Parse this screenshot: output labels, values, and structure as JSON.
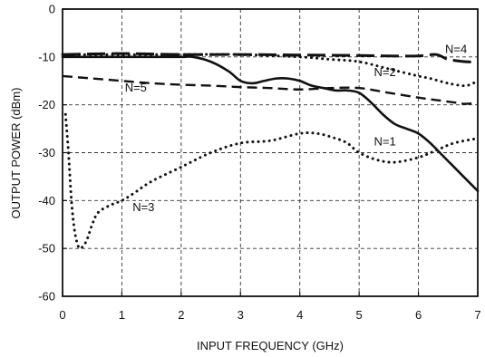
{
  "chart_data": {
    "type": "line",
    "title": "",
    "xlabel": "INPUT FREQUENCY (GHz)",
    "ylabel": "OUTPUT POWER (dBm)",
    "xlim": [
      0,
      7
    ],
    "ylim": [
      -60,
      0
    ],
    "xticks": [
      0,
      1,
      2,
      3,
      4,
      5,
      6,
      7
    ],
    "yticks": [
      0,
      -10,
      -20,
      -30,
      -40,
      -50,
      -60
    ],
    "grid": true,
    "legend": "none",
    "series": [
      {
        "name": "N=1",
        "style": "solid",
        "x": [
          0.0,
          0.5,
          1.0,
          1.5,
          2.0,
          2.2,
          2.5,
          2.8,
          3.0,
          3.2,
          3.4,
          3.6,
          3.8,
          4.0,
          4.2,
          4.4,
          4.6,
          4.8,
          5.0,
          5.2,
          5.4,
          5.6,
          5.8,
          6.0,
          6.2,
          6.4,
          6.6,
          6.8,
          7.0
        ],
        "y": [
          -10.0,
          -10.0,
          -10.0,
          -10.0,
          -10.0,
          -10.0,
          -11.0,
          -13.0,
          -15.0,
          -15.5,
          -15.0,
          -14.5,
          -14.5,
          -15.0,
          -16.0,
          -16.5,
          -17.0,
          -17.0,
          -17.5,
          -19.5,
          -22.0,
          -24.0,
          -25.0,
          -26.0,
          -28.0,
          -30.5,
          -33.0,
          -35.5,
          -38.0
        ]
      },
      {
        "name": "N=2",
        "style": "dotted",
        "x": [
          0.0,
          1.0,
          2.0,
          3.0,
          4.0,
          4.5,
          5.0,
          5.5,
          6.0,
          6.2,
          6.5,
          6.8,
          7.0
        ],
        "y": [
          -9.5,
          -9.5,
          -9.5,
          -9.5,
          -10.0,
          -10.5,
          -11.0,
          -12.5,
          -14.0,
          -14.5,
          -15.5,
          -16.0,
          -15.0
        ]
      },
      {
        "name": "N=3",
        "style": "dotted",
        "x": [
          0.05,
          0.1,
          0.15,
          0.2,
          0.25,
          0.3,
          0.4,
          0.5,
          0.6,
          0.8,
          1.0,
          1.2,
          1.5,
          2.0,
          2.5,
          3.0,
          3.5,
          4.0,
          4.3,
          4.6,
          4.8,
          5.0,
          5.3,
          5.6,
          6.0,
          6.3,
          6.6,
          7.0
        ],
        "y": [
          -22.0,
          -30.0,
          -40.0,
          -46.0,
          -49.0,
          -50.0,
          -48.5,
          -45.0,
          -42.5,
          -41.0,
          -40.0,
          -38.5,
          -36.0,
          -33.0,
          -30.0,
          -28.0,
          -27.5,
          -26.0,
          -26.0,
          -27.0,
          -28.0,
          -30.0,
          -31.5,
          -32.0,
          -31.0,
          -29.5,
          -28.0,
          -27.0
        ]
      },
      {
        "name": "N=4",
        "style": "long-dash",
        "x": [
          0.0,
          1.0,
          2.0,
          3.0,
          4.0,
          5.0,
          5.5,
          6.0,
          6.3,
          6.5,
          6.8,
          7.0
        ],
        "y": [
          -9.5,
          -9.3,
          -9.5,
          -9.5,
          -9.6,
          -9.7,
          -9.8,
          -9.8,
          -9.5,
          -10.5,
          -11.0,
          -11.0
        ]
      },
      {
        "name": "N=5",
        "style": "dashed",
        "x": [
          0.0,
          0.5,
          1.0,
          1.5,
          2.0,
          2.5,
          3.0,
          3.5,
          4.0,
          4.5,
          5.0,
          5.5,
          6.0,
          6.3,
          6.6,
          6.8,
          7.0
        ],
        "y": [
          -14.0,
          -14.5,
          -15.0,
          -15.5,
          -15.8,
          -16.0,
          -16.3,
          -16.5,
          -16.8,
          -16.5,
          -16.5,
          -17.5,
          -18.5,
          -19.0,
          -19.5,
          -19.8,
          -19.5
        ]
      }
    ],
    "annotations": [
      {
        "text": "N=4",
        "x": 6.45,
        "y": -9.2
      },
      {
        "text": "N=2",
        "x": 5.25,
        "y": -14.0
      },
      {
        "text": "N=5",
        "x": 1.05,
        "y": -17.2
      },
      {
        "text": "N=1",
        "x": 5.25,
        "y": -28.5
      },
      {
        "text": "N=3",
        "x": 1.18,
        "y": -42.2
      }
    ]
  },
  "colors": {
    "line": "#111111",
    "grid": "#333333",
    "background": "#ffffff"
  }
}
